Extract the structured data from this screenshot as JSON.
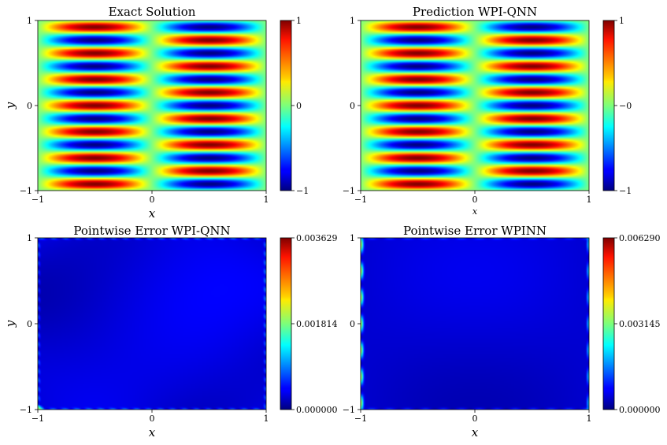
{
  "chart_data": [
    {
      "type": "heatmap",
      "title": "Exact Solution",
      "xlabel": "x",
      "ylabel": "y",
      "xlim": [
        -1,
        1
      ],
      "ylim": [
        -1,
        1
      ],
      "x_ticks": [
        "−1",
        "0",
        "1"
      ],
      "y_ticks": [
        "−1",
        "0",
        "1"
      ],
      "field": "sin(pi x) cos(6 pi y) pattern: 7 horizontal bands per unit of y, sign flips at x = 0",
      "colorbar": {
        "min": -1,
        "max": 1,
        "ticks": [
          "−1",
          "0",
          "1"
        ]
      },
      "colormap": "jet"
    },
    {
      "type": "heatmap",
      "title": "Prediction WPI-QNN",
      "xlabel": "x",
      "ylabel": "",
      "xlim": [
        -1,
        1
      ],
      "ylim": [
        -1,
        1
      ],
      "x_ticks": [
        "−1",
        "0",
        "1"
      ],
      "y_ticks": [
        "−1",
        "0",
        "1"
      ],
      "colorbar": {
        "min": -1,
        "max": 1,
        "ticks": [
          "−1",
          "−0",
          "1"
        ]
      },
      "colormap": "jet"
    },
    {
      "type": "heatmap",
      "title": "Pointwise Error WPI-QNN",
      "xlabel": "x",
      "ylabel": "y",
      "xlim": [
        -1,
        1
      ],
      "ylim": [
        -1,
        1
      ],
      "x_ticks": [
        "−1",
        "0",
        "1"
      ],
      "y_ticks": [
        "−1",
        "0",
        "1"
      ],
      "colorbar": {
        "min": 0.0,
        "max": 0.003629,
        "ticks": [
          "0.000000",
          "0.001814",
          "0.003629"
        ]
      },
      "colormap": "jet"
    },
    {
      "type": "heatmap",
      "title": "Pointwise Error WPINN",
      "xlabel": "x",
      "ylabel": "",
      "xlim": [
        -1,
        1
      ],
      "ylim": [
        -1,
        1
      ],
      "x_ticks": [
        "−1",
        "0",
        "1"
      ],
      "y_ticks": [
        "−1",
        "0",
        "1"
      ],
      "colorbar": {
        "min": 0.0,
        "max": 0.00629,
        "ticks": [
          "0.000000",
          "0.003145",
          "0.006290"
        ]
      },
      "colormap": "jet"
    }
  ]
}
